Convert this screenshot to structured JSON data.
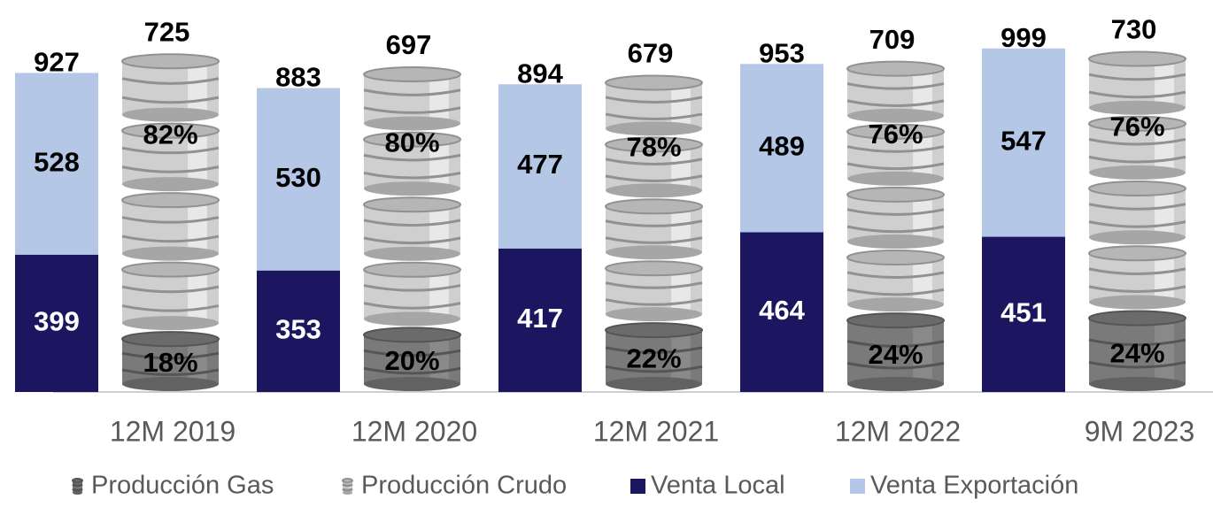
{
  "chart_data": {
    "type": "bar",
    "categories": [
      "12M 2019",
      "12M 2020",
      "12M 2021",
      "12M 2022",
      "9M 2023"
    ],
    "series": [
      {
        "name": "Venta Local",
        "color": "#1c1660",
        "values": [
          399,
          353,
          417,
          464,
          451
        ]
      },
      {
        "name": "Venta Exportación",
        "color": "#b4c7e7",
        "values": [
          528,
          530,
          477,
          489,
          547
        ]
      }
    ],
    "totals": [
      927,
      883,
      894,
      953,
      999
    ],
    "production": {
      "totals": [
        725,
        697,
        679,
        709,
        730
      ],
      "series": [
        {
          "name": "Producción Gas",
          "color": "#7a7a7a",
          "values": [
            18,
            20,
            22,
            24,
            24
          ],
          "value_labels": [
            "18%",
            "20%",
            "22%",
            "24%",
            "24%"
          ]
        },
        {
          "name": "Producción Crudo",
          "color": "#cfcfcf",
          "values": [
            82,
            80,
            78,
            76,
            76
          ],
          "value_labels": [
            "82%",
            "80%",
            "78%",
            "76%",
            "76%"
          ]
        }
      ]
    },
    "legend_position": "bottom"
  }
}
